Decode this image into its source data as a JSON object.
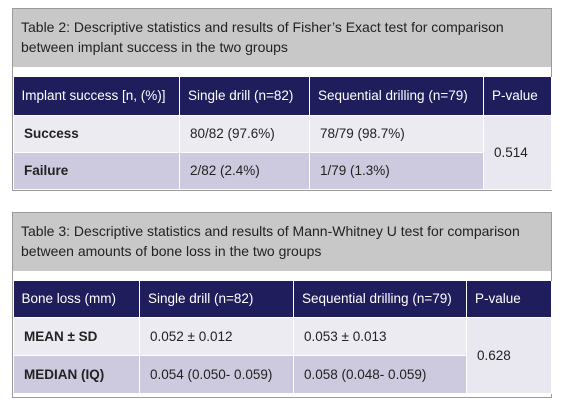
{
  "tables": [
    {
      "caption": "Table 2: Descriptive statistics and results of Fisher’s Exact test for comparison between implant success in the two groups",
      "header": [
        "Implant success [n, (%)]",
        "Single drill (n=82)",
        "Sequential drilling (n=79)",
        "P-value"
      ],
      "rows": [
        [
          "Success",
          "80/82 (97.6%)",
          "78/79 (98.7%)"
        ],
        [
          "Failure",
          "2/82 (2.4%)",
          "1/79 (1.3%)"
        ]
      ],
      "p_value": "0.514"
    },
    {
      "caption": "Table 3: Descriptive statistics and results of Mann-Whitney U test for comparison between amounts of bone loss in the two groups",
      "header": [
        "Bone loss (mm)",
        "Single drill (n=82)",
        "Sequential drilling (n=79)",
        "P-value"
      ],
      "rows": [
        [
          "MEAN ± SD",
          "0.052 ± 0.012",
          "0.053 ± 0.013"
        ],
        [
          "MEDIAN (IQ)",
          "0.054 (0.050- 0.059)",
          "0.058 (0.048- 0.059)"
        ]
      ],
      "p_value": "0.628"
    }
  ]
}
